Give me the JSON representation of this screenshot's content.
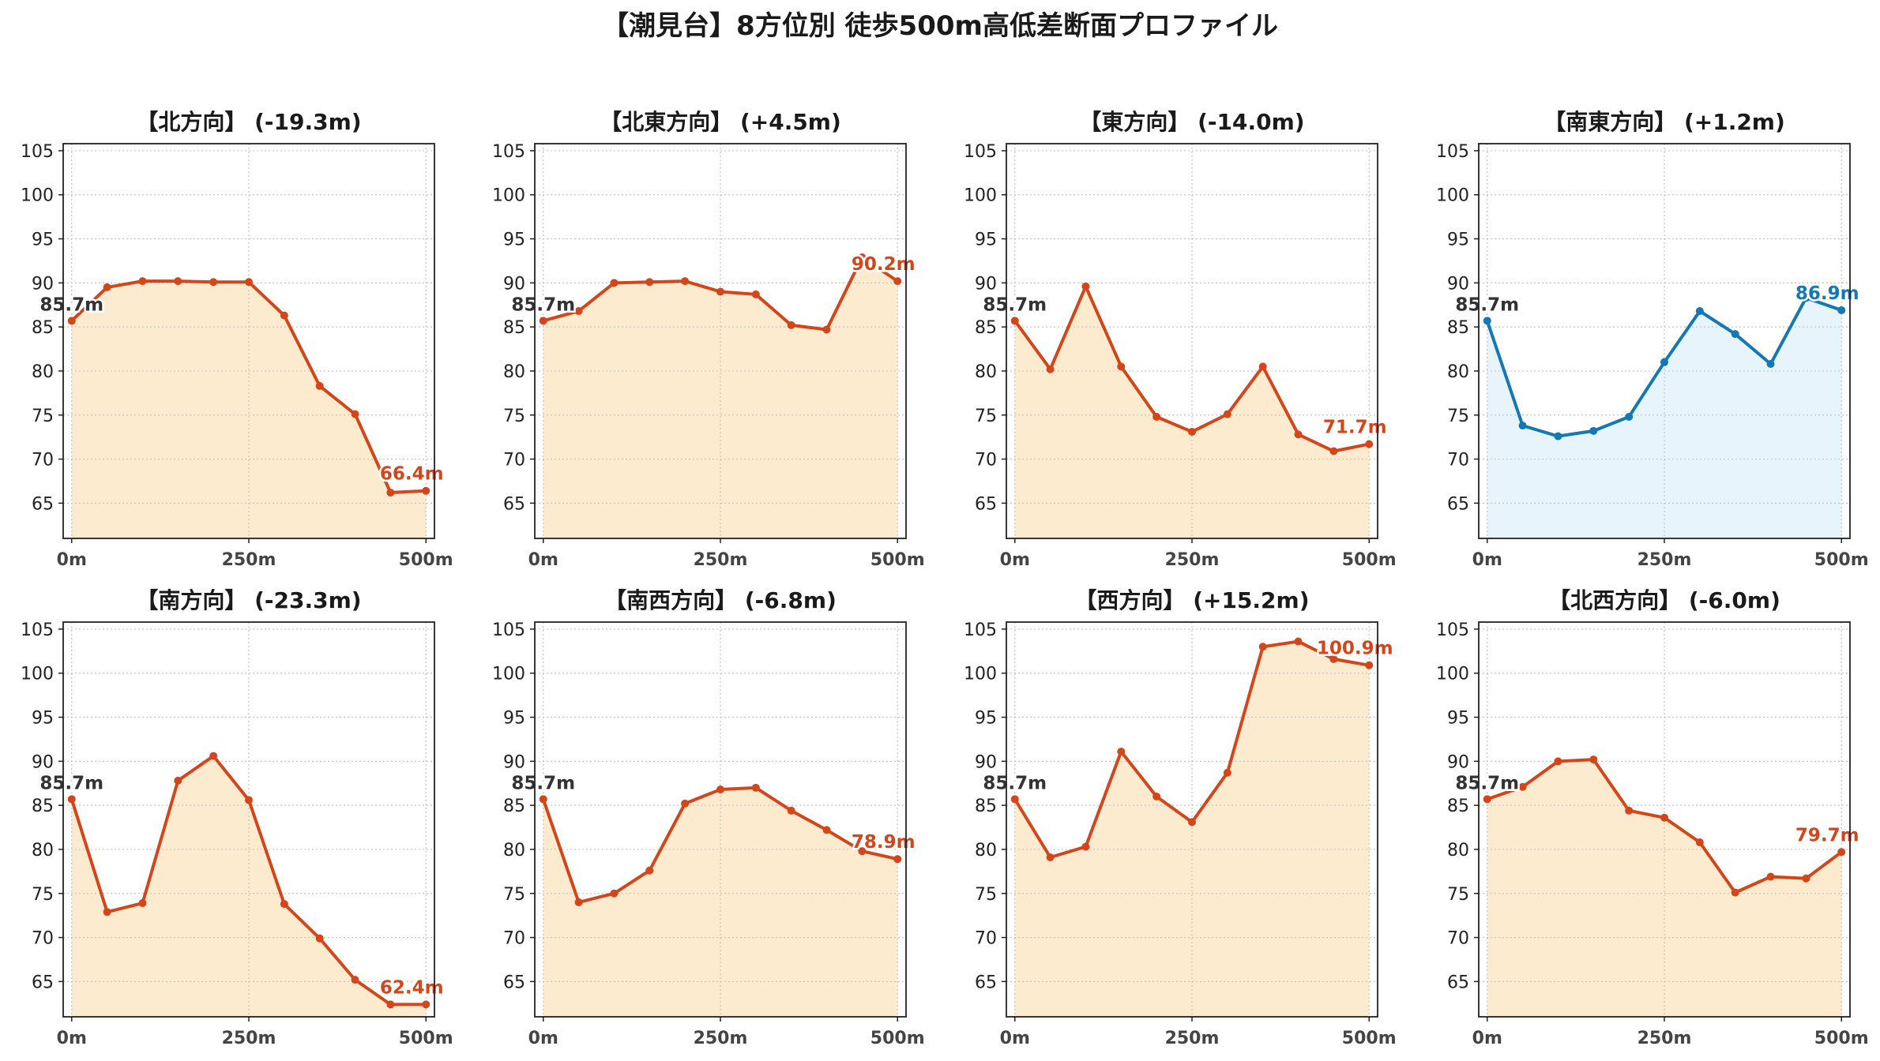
{
  "title": "【潮見台】8方位別 徒歩500m高低差断面プロファイル",
  "colors": {
    "down_line": "#d4461a",
    "down_fill": "#fdebd0",
    "up_line": "#1478b4",
    "up_fill": "#e8f4fb",
    "start_label": "#333333"
  },
  "chart_data": [
    {
      "type": "area",
      "title": "【北方向】 (-19.3m)",
      "trend": "down",
      "x": [
        0,
        50,
        100,
        150,
        200,
        250,
        300,
        350,
        400,
        450,
        500
      ],
      "y": [
        85.7,
        89.5,
        90.2,
        90.2,
        90.1,
        90.1,
        86.3,
        78.3,
        75.1,
        66.2,
        66.4
      ],
      "x_ticks": [
        0,
        250,
        500
      ],
      "x_tick_labels": [
        "0m",
        "250m",
        "500m"
      ],
      "y_ticks": [
        65,
        70,
        75,
        80,
        85,
        90,
        95,
        100,
        105
      ],
      "xlim": [
        -12,
        512
      ],
      "ylim": [
        61,
        105.8
      ],
      "start_label": "85.7m",
      "end_label": "66.4m",
      "grid": true
    },
    {
      "type": "area",
      "title": "【北東方向】 (+4.5m)",
      "trend": "down",
      "x": [
        0,
        50,
        100,
        150,
        200,
        250,
        300,
        350,
        400,
        450,
        500
      ],
      "y": [
        85.7,
        86.8,
        90.0,
        90.1,
        90.2,
        89.0,
        88.7,
        85.2,
        84.7,
        92.9,
        90.2
      ],
      "x_ticks": [
        0,
        250,
        500
      ],
      "x_tick_labels": [
        "0m",
        "250m",
        "500m"
      ],
      "y_ticks": [
        65,
        70,
        75,
        80,
        85,
        90,
        95,
        100,
        105
      ],
      "xlim": [
        -12,
        512
      ],
      "ylim": [
        61,
        105.8
      ],
      "start_label": "85.7m",
      "end_label": "90.2m",
      "grid": true
    },
    {
      "type": "area",
      "title": "【東方向】 (-14.0m)",
      "trend": "down",
      "x": [
        0,
        50,
        100,
        150,
        200,
        250,
        300,
        350,
        400,
        450,
        500
      ],
      "y": [
        85.7,
        80.2,
        89.6,
        80.5,
        74.8,
        73.1,
        75.1,
        80.5,
        72.8,
        70.9,
        71.7
      ],
      "x_ticks": [
        0,
        250,
        500
      ],
      "x_tick_labels": [
        "0m",
        "250m",
        "500m"
      ],
      "y_ticks": [
        65,
        70,
        75,
        80,
        85,
        90,
        95,
        100,
        105
      ],
      "xlim": [
        -12,
        512
      ],
      "ylim": [
        61,
        105.8
      ],
      "start_label": "85.7m",
      "end_label": "71.7m",
      "grid": true
    },
    {
      "type": "area",
      "title": "【南東方向】 (+1.2m)",
      "trend": "up",
      "x": [
        0,
        50,
        100,
        150,
        200,
        250,
        300,
        350,
        400,
        450,
        500
      ],
      "y": [
        85.7,
        73.8,
        72.6,
        73.2,
        74.8,
        81.0,
        86.8,
        84.2,
        80.8,
        88.3,
        86.9
      ],
      "x_ticks": [
        0,
        250,
        500
      ],
      "x_tick_labels": [
        "0m",
        "250m",
        "500m"
      ],
      "y_ticks": [
        65,
        70,
        75,
        80,
        85,
        90,
        95,
        100,
        105
      ],
      "xlim": [
        -12,
        512
      ],
      "ylim": [
        61,
        105.8
      ],
      "start_label": "85.7m",
      "end_label": "86.9m",
      "grid": true
    },
    {
      "type": "area",
      "title": "【南方向】 (-23.3m)",
      "trend": "down",
      "x": [
        0,
        50,
        100,
        150,
        200,
        250,
        300,
        350,
        400,
        450,
        500
      ],
      "y": [
        85.7,
        72.9,
        73.9,
        87.8,
        90.6,
        85.6,
        73.8,
        69.9,
        65.2,
        62.4,
        62.4
      ],
      "x_ticks": [
        0,
        250,
        500
      ],
      "x_tick_labels": [
        "0m",
        "250m",
        "500m"
      ],
      "y_ticks": [
        65,
        70,
        75,
        80,
        85,
        90,
        95,
        100,
        105
      ],
      "xlim": [
        -12,
        512
      ],
      "ylim": [
        61,
        105.8
      ],
      "start_label": "85.7m",
      "end_label": "62.4m",
      "grid": true
    },
    {
      "type": "area",
      "title": "【南西方向】 (-6.8m)",
      "trend": "down",
      "x": [
        0,
        50,
        100,
        150,
        200,
        250,
        300,
        350,
        400,
        450,
        500
      ],
      "y": [
        85.7,
        74.0,
        75.0,
        77.6,
        85.2,
        86.8,
        87.0,
        84.4,
        82.2,
        79.8,
        78.9
      ],
      "x_ticks": [
        0,
        250,
        500
      ],
      "x_tick_labels": [
        "0m",
        "250m",
        "500m"
      ],
      "y_ticks": [
        65,
        70,
        75,
        80,
        85,
        90,
        95,
        100,
        105
      ],
      "xlim": [
        -12,
        512
      ],
      "ylim": [
        61,
        105.8
      ],
      "start_label": "85.7m",
      "end_label": "78.9m",
      "grid": true
    },
    {
      "type": "area",
      "title": "【西方向】 (+15.2m)",
      "trend": "down",
      "x": [
        0,
        50,
        100,
        150,
        200,
        250,
        300,
        350,
        400,
        450,
        500
      ],
      "y": [
        85.7,
        79.1,
        80.3,
        91.1,
        86.0,
        83.1,
        88.7,
        103.0,
        103.6,
        101.6,
        100.9
      ],
      "x_ticks": [
        0,
        250,
        500
      ],
      "x_tick_labels": [
        "0m",
        "250m",
        "500m"
      ],
      "y_ticks": [
        65,
        70,
        75,
        80,
        85,
        90,
        95,
        100,
        105
      ],
      "xlim": [
        -12,
        512
      ],
      "ylim": [
        61,
        105.8
      ],
      "start_label": "85.7m",
      "end_label": "100.9m",
      "grid": true
    },
    {
      "type": "area",
      "title": "【北西方向】 (-6.0m)",
      "trend": "down",
      "x": [
        0,
        50,
        100,
        150,
        200,
        250,
        300,
        350,
        400,
        450,
        500
      ],
      "y": [
        85.7,
        87.1,
        90.0,
        90.2,
        84.4,
        83.6,
        80.8,
        75.1,
        76.9,
        76.7,
        79.7
      ],
      "x_ticks": [
        0,
        250,
        500
      ],
      "x_tick_labels": [
        "0m",
        "250m",
        "500m"
      ],
      "y_ticks": [
        65,
        70,
        75,
        80,
        85,
        90,
        95,
        100,
        105
      ],
      "xlim": [
        -12,
        512
      ],
      "ylim": [
        61,
        105.8
      ],
      "start_label": "85.7m",
      "end_label": "79.7m",
      "grid": true
    }
  ]
}
